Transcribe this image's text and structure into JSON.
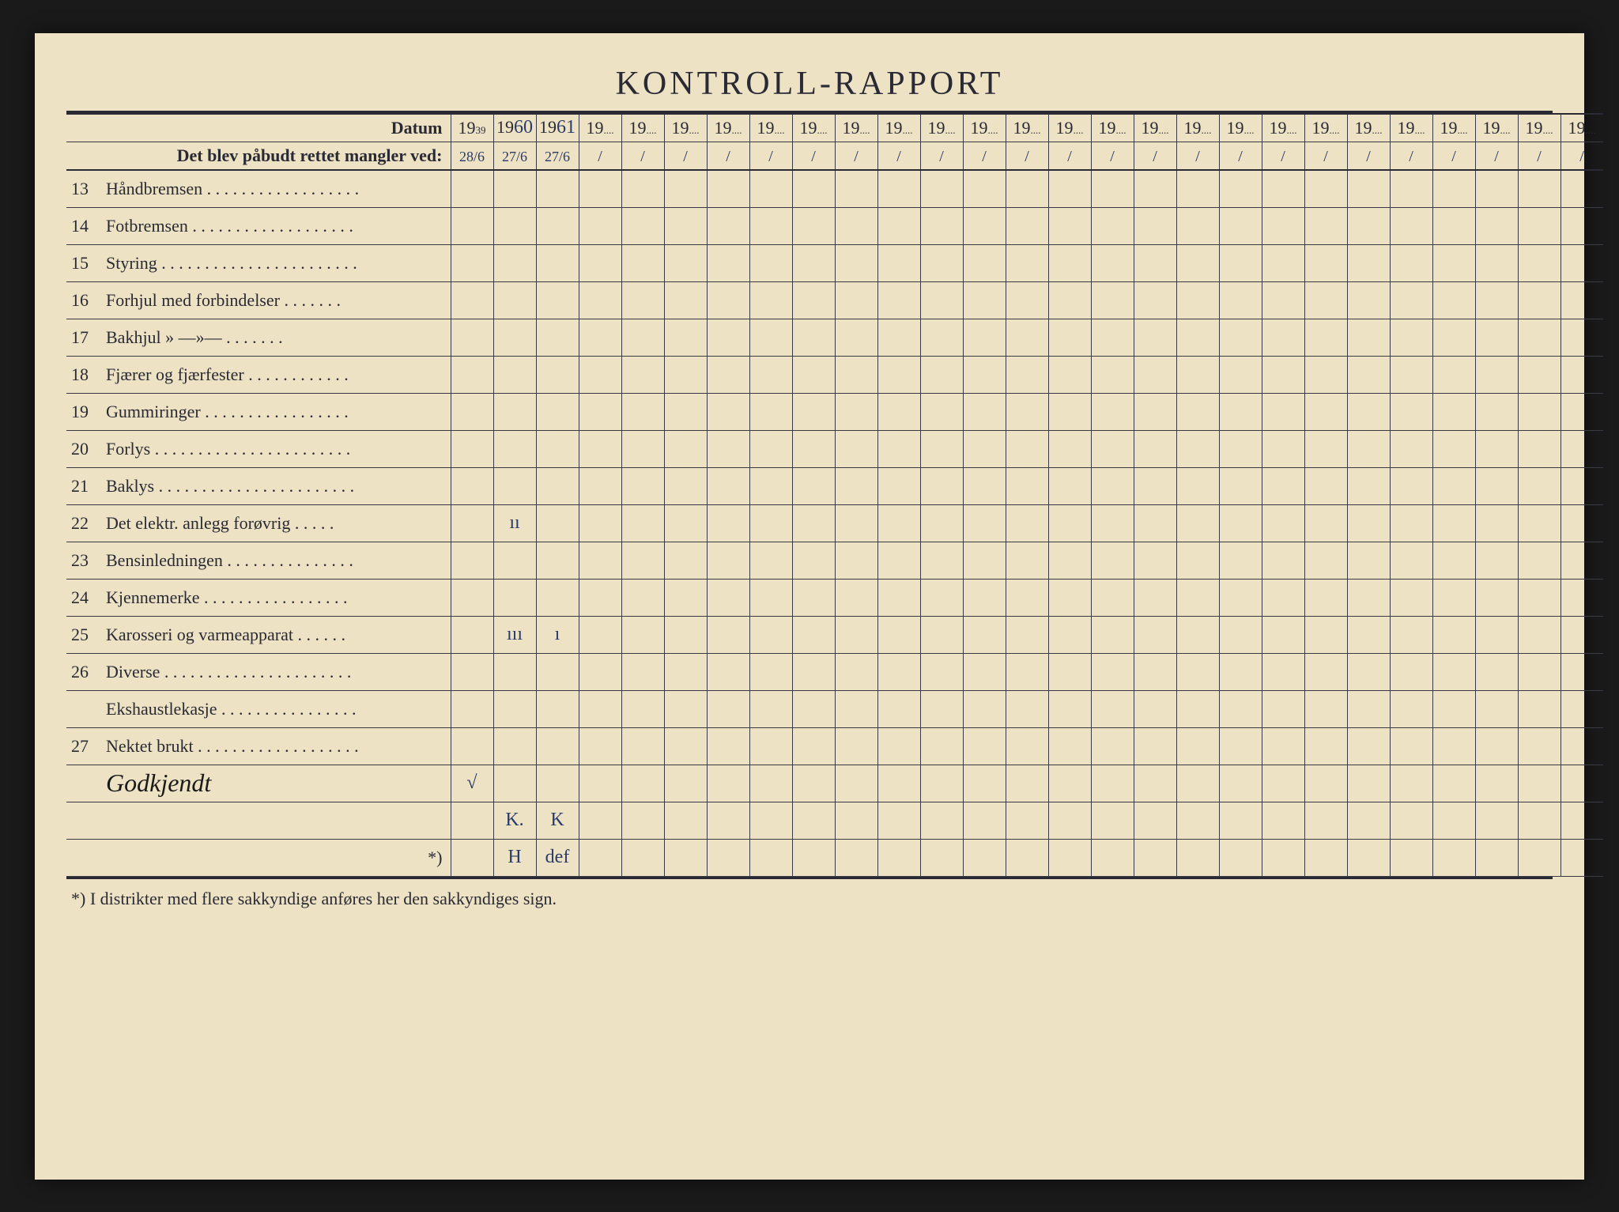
{
  "title": "KONTROLL-RAPPORT",
  "header": {
    "datum_label": "Datum",
    "mangler_label": "Det blev påbudt rettet mangler ved:"
  },
  "year_prefix": "19",
  "year_columns": [
    {
      "suffix_print": "39",
      "suffix_hand": "",
      "date": "28/6"
    },
    {
      "suffix_print": "",
      "suffix_hand": "60",
      "date": "27/6"
    },
    {
      "suffix_print": "",
      "suffix_hand": "61",
      "date": "27/6"
    },
    {
      "suffix_print": "....",
      "suffix_hand": "",
      "date": "/"
    },
    {
      "suffix_print": "....",
      "suffix_hand": "",
      "date": "/"
    },
    {
      "suffix_print": "....",
      "suffix_hand": "",
      "date": "/"
    },
    {
      "suffix_print": "....",
      "suffix_hand": "",
      "date": "/"
    },
    {
      "suffix_print": "....",
      "suffix_hand": "",
      "date": "/"
    },
    {
      "suffix_print": "....",
      "suffix_hand": "",
      "date": "/"
    },
    {
      "suffix_print": "....",
      "suffix_hand": "",
      "date": "/"
    },
    {
      "suffix_print": "....",
      "suffix_hand": "",
      "date": "/"
    },
    {
      "suffix_print": "....",
      "suffix_hand": "",
      "date": "/"
    },
    {
      "suffix_print": "....",
      "suffix_hand": "",
      "date": "/"
    },
    {
      "suffix_print": "....",
      "suffix_hand": "",
      "date": "/"
    },
    {
      "suffix_print": "....",
      "suffix_hand": "",
      "date": "/"
    },
    {
      "suffix_print": "....",
      "suffix_hand": "",
      "date": "/"
    },
    {
      "suffix_print": "....",
      "suffix_hand": "",
      "date": "/"
    },
    {
      "suffix_print": "....",
      "suffix_hand": "",
      "date": "/"
    },
    {
      "suffix_print": "....",
      "suffix_hand": "",
      "date": "/"
    },
    {
      "suffix_print": "....",
      "suffix_hand": "",
      "date": "/"
    },
    {
      "suffix_print": "....",
      "suffix_hand": "",
      "date": "/"
    },
    {
      "suffix_print": "....",
      "suffix_hand": "",
      "date": "/"
    },
    {
      "suffix_print": "....",
      "suffix_hand": "",
      "date": "/"
    },
    {
      "suffix_print": "....",
      "suffix_hand": "",
      "date": "/"
    },
    {
      "suffix_print": "....",
      "suffix_hand": "",
      "date": "/"
    },
    {
      "suffix_print": "....",
      "suffix_hand": "",
      "date": "/"
    },
    {
      "suffix_print": "....",
      "suffix_hand": "",
      "date": "/"
    }
  ],
  "rows": [
    {
      "num": "13",
      "label": "Håndbremsen . . . . . . . . . . . . . . . . . .",
      "cells": [
        "",
        "",
        "",
        "",
        "",
        "",
        "",
        "",
        "",
        "",
        "",
        "",
        "",
        "",
        "",
        "",
        "",
        "",
        "",
        "",
        "",
        "",
        "",
        "",
        "",
        "",
        ""
      ]
    },
    {
      "num": "14",
      "label": "Fotbremsen . . . . . . . . . . . . . . . . . . .",
      "cells": [
        "",
        "",
        "",
        "",
        "",
        "",
        "",
        "",
        "",
        "",
        "",
        "",
        "",
        "",
        "",
        "",
        "",
        "",
        "",
        "",
        "",
        "",
        "",
        "",
        "",
        "",
        ""
      ]
    },
    {
      "num": "15",
      "label": "Styring . . . . . . . . . . . . . . . . . . . . . . .",
      "cells": [
        "",
        "",
        "",
        "",
        "",
        "",
        "",
        "",
        "",
        "",
        "",
        "",
        "",
        "",
        "",
        "",
        "",
        "",
        "",
        "",
        "",
        "",
        "",
        "",
        "",
        "",
        ""
      ]
    },
    {
      "num": "16",
      "label": "Forhjul med forbindelser . . . . . . .",
      "cells": [
        "",
        "",
        "",
        "",
        "",
        "",
        "",
        "",
        "",
        "",
        "",
        "",
        "",
        "",
        "",
        "",
        "",
        "",
        "",
        "",
        "",
        "",
        "",
        "",
        "",
        "",
        ""
      ]
    },
    {
      "num": "17",
      "label": "Bakhjul   »        —»—        . . . . . . .",
      "cells": [
        "",
        "",
        "",
        "",
        "",
        "",
        "",
        "",
        "",
        "",
        "",
        "",
        "",
        "",
        "",
        "",
        "",
        "",
        "",
        "",
        "",
        "",
        "",
        "",
        "",
        "",
        ""
      ]
    },
    {
      "num": "18",
      "label": "Fjærer og fjærfester . . . . . . . . . . . .",
      "cells": [
        "",
        "",
        "",
        "",
        "",
        "",
        "",
        "",
        "",
        "",
        "",
        "",
        "",
        "",
        "",
        "",
        "",
        "",
        "",
        "",
        "",
        "",
        "",
        "",
        "",
        "",
        ""
      ]
    },
    {
      "num": "19",
      "label": "Gummiringer . . . . . . . . . . . . . . . . .",
      "cells": [
        "",
        "",
        "",
        "",
        "",
        "",
        "",
        "",
        "",
        "",
        "",
        "",
        "",
        "",
        "",
        "",
        "",
        "",
        "",
        "",
        "",
        "",
        "",
        "",
        "",
        "",
        ""
      ]
    },
    {
      "num": "20",
      "label": "Forlys  . . . . . . . . . . . . . . . . . . . . . . .",
      "cells": [
        "",
        "",
        "",
        "",
        "",
        "",
        "",
        "",
        "",
        "",
        "",
        "",
        "",
        "",
        "",
        "",
        "",
        "",
        "",
        "",
        "",
        "",
        "",
        "",
        "",
        "",
        ""
      ]
    },
    {
      "num": "21",
      "label": "Baklys  . . . . . . . . . . . . . . . . . . . . . . .",
      "cells": [
        "",
        "",
        "",
        "",
        "",
        "",
        "",
        "",
        "",
        "",
        "",
        "",
        "",
        "",
        "",
        "",
        "",
        "",
        "",
        "",
        "",
        "",
        "",
        "",
        "",
        "",
        ""
      ]
    },
    {
      "num": "22",
      "label": "Det elektr. anlegg forøvrig  . . . . .",
      "cells": [
        "",
        "ıı",
        "",
        "",
        "",
        "",
        "",
        "",
        "",
        "",
        "",
        "",
        "",
        "",
        "",
        "",
        "",
        "",
        "",
        "",
        "",
        "",
        "",
        "",
        "",
        "",
        ""
      ]
    },
    {
      "num": "23",
      "label": "Bensinledningen . . . . . . . . . . . . . . .",
      "cells": [
        "",
        "",
        "",
        "",
        "",
        "",
        "",
        "",
        "",
        "",
        "",
        "",
        "",
        "",
        "",
        "",
        "",
        "",
        "",
        "",
        "",
        "",
        "",
        "",
        "",
        "",
        ""
      ]
    },
    {
      "num": "24",
      "label": "Kjennemerke  . . . . . . . . . . . . . . . . .",
      "cells": [
        "",
        "",
        "",
        "",
        "",
        "",
        "",
        "",
        "",
        "",
        "",
        "",
        "",
        "",
        "",
        "",
        "",
        "",
        "",
        "",
        "",
        "",
        "",
        "",
        "",
        "",
        ""
      ]
    },
    {
      "num": "25",
      "label": "Karosseri og varmeapparat . . . . . .",
      "cells": [
        "",
        "ııı",
        "ı",
        "",
        "",
        "",
        "",
        "",
        "",
        "",
        "",
        "",
        "",
        "",
        "",
        "",
        "",
        "",
        "",
        "",
        "",
        "",
        "",
        "",
        "",
        "",
        ""
      ]
    },
    {
      "num": "26",
      "label": "Diverse  . . . . . . . . . . . . . . . . . . . . . .",
      "cells": [
        "",
        "",
        "",
        "",
        "",
        "",
        "",
        "",
        "",
        "",
        "",
        "",
        "",
        "",
        "",
        "",
        "",
        "",
        "",
        "",
        "",
        "",
        "",
        "",
        "",
        "",
        ""
      ]
    },
    {
      "num": "",
      "label": "Ekshaustlekasje . . . . . . . . . . . . . . . .",
      "cells": [
        "",
        "",
        "",
        "",
        "",
        "",
        "",
        "",
        "",
        "",
        "",
        "",
        "",
        "",
        "",
        "",
        "",
        "",
        "",
        "",
        "",
        "",
        "",
        "",
        "",
        "",
        ""
      ]
    },
    {
      "num": "27",
      "label": "Nektet brukt . . . . . . . . . . . . . . . . . . .",
      "cells": [
        "",
        "",
        "",
        "",
        "",
        "",
        "",
        "",
        "",
        "",
        "",
        "",
        "",
        "",
        "",
        "",
        "",
        "",
        "",
        "",
        "",
        "",
        "",
        "",
        "",
        "",
        ""
      ]
    },
    {
      "num": "",
      "label_hand": "Godkjendt",
      "cells": [
        "√",
        "",
        "",
        "",
        "",
        "",
        "",
        "",
        "",
        "",
        "",
        "",
        "",
        "",
        "",
        "",
        "",
        "",
        "",
        "",
        "",
        "",
        "",
        "",
        "",
        "",
        ""
      ]
    },
    {
      "num": "",
      "label": "",
      "cells": [
        "",
        "K.",
        "K",
        "",
        "",
        "",
        "",
        "",
        "",
        "",
        "",
        "",
        "",
        "",
        "",
        "",
        "",
        "",
        "",
        "",
        "",
        "",
        "",
        "",
        "",
        "",
        ""
      ]
    },
    {
      "num": "",
      "label_right": "*)",
      "cells": [
        "",
        "H",
        "def",
        "",
        "",
        "",
        "",
        "",
        "",
        "",
        "",
        "",
        "",
        "",
        "",
        "",
        "",
        "",
        "",
        "",
        "",
        "",
        "",
        "",
        "",
        "",
        ""
      ]
    }
  ],
  "footnote": "*)   I distrikter med flere sakkyndige anføres her den sakkyndiges sign.",
  "colors": {
    "paper": "#ede2c3",
    "ink": "#2a2a35",
    "handwriting": "#2a3a6a"
  }
}
